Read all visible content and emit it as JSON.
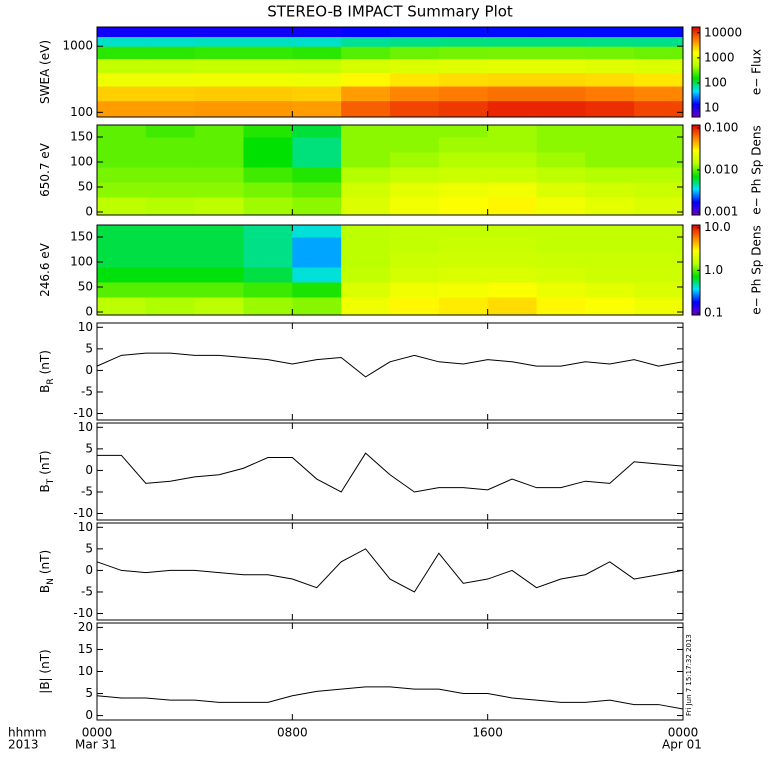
{
  "title": "STEREO-B IMPACT Summary Plot",
  "timestamp": "Fri Jun  7 15:17:32 2013",
  "colormap": [
    "#6a00c8",
    "#0000ff",
    "#00e0ff",
    "#00e000",
    "#b8ff00",
    "#ffff00",
    "#ff8000",
    "#e00000"
  ],
  "chart_data": [
    {
      "type": "heatmap",
      "ylabel": "SWEA (eV)",
      "ylog": true,
      "ylim": [
        85,
        1950
      ],
      "yticks": [
        100,
        1000
      ],
      "xlim": [
        0,
        24
      ],
      "xticks": [
        0,
        8,
        16,
        24
      ],
      "x_edges": [
        0,
        2,
        4,
        6,
        8,
        10,
        12,
        14,
        16,
        18,
        20,
        22,
        24
      ],
      "y_edges": [
        85,
        150,
        250,
        400,
        650,
        1000,
        1400,
        1950
      ],
      "values": [
        [
          4000,
          4000,
          4200,
          4200,
          4000,
          7000,
          9000,
          10000,
          12000,
          12000,
          11000,
          9000
        ],
        [
          2500,
          2500,
          2600,
          2600,
          2500,
          4000,
          5000,
          5500,
          6000,
          6000,
          5500,
          5000
        ],
        [
          1200,
          1200,
          1250,
          1250,
          1200,
          1700,
          2000,
          2200,
          2300,
          2300,
          2200,
          2000
        ],
        [
          600,
          600,
          620,
          620,
          600,
          800,
          900,
          950,
          1000,
          1000,
          950,
          900
        ],
        [
          200,
          200,
          210,
          210,
          200,
          260,
          300,
          320,
          330,
          330,
          320,
          300
        ],
        [
          60,
          60,
          62,
          62,
          60,
          75,
          80,
          85,
          85,
          85,
          82,
          80
        ],
        [
          12,
          12,
          12,
          12,
          12,
          14,
          15,
          15,
          15,
          15,
          15,
          15
        ]
      ],
      "colorbar": {
        "label": "e− Flux",
        "log": true,
        "clim": [
          4.4,
          17000
        ],
        "ticks": [
          10,
          100,
          1000,
          10000
        ]
      }
    },
    {
      "type": "heatmap",
      "ylabel": "650.7 eV",
      "ylog": false,
      "ylim": [
        -6,
        174
      ],
      "yticks": [
        0,
        50,
        100,
        150
      ],
      "xlim": [
        0,
        24
      ],
      "xticks": [
        0,
        8,
        16,
        24
      ],
      "x_edges": [
        0,
        2,
        4,
        6,
        8,
        10,
        12,
        14,
        16,
        18,
        20,
        22,
        24
      ],
      "y_edges": [
        -6,
        30,
        60,
        90,
        120,
        150,
        174
      ],
      "values": [
        [
          0.015,
          0.014,
          0.015,
          0.013,
          0.012,
          0.02,
          0.025,
          0.028,
          0.03,
          0.025,
          0.022,
          0.02
        ],
        [
          0.012,
          0.012,
          0.012,
          0.011,
          0.01,
          0.018,
          0.022,
          0.024,
          0.025,
          0.02,
          0.018,
          0.017
        ],
        [
          0.011,
          0.011,
          0.011,
          0.009,
          0.008,
          0.014,
          0.016,
          0.017,
          0.017,
          0.015,
          0.014,
          0.014
        ],
        [
          0.01,
          0.01,
          0.01,
          0.007,
          0.005,
          0.012,
          0.013,
          0.014,
          0.014,
          0.013,
          0.012,
          0.012
        ],
        [
          0.01,
          0.01,
          0.01,
          0.007,
          0.005,
          0.012,
          0.012,
          0.013,
          0.013,
          0.012,
          0.012,
          0.012
        ],
        [
          0.01,
          0.009,
          0.01,
          0.008,
          0.006,
          0.012,
          0.012,
          0.012,
          0.013,
          0.012,
          0.012,
          0.012
        ]
      ],
      "colorbar": {
        "label": "e− Ph Sp Dens",
        "log": true,
        "clim": [
          0.00085,
          0.117
        ],
        "ticks": [
          0.001,
          {
            "value": 0.01,
            "label": "0.010"
          },
          {
            "value": 0.1,
            "label": "0.100"
          }
        ]
      }
    },
    {
      "type": "heatmap",
      "ylabel": "246.6 eV",
      "ylog": false,
      "ylim": [
        -6,
        174
      ],
      "yticks": [
        0,
        50,
        100,
        150
      ],
      "xlim": [
        0,
        24
      ],
      "xticks": [
        0,
        8,
        16,
        24
      ],
      "x_edges": [
        0,
        2,
        4,
        6,
        8,
        10,
        12,
        14,
        16,
        18,
        20,
        22,
        24
      ],
      "y_edges": [
        -6,
        30,
        60,
        90,
        120,
        150,
        174
      ],
      "values": [
        [
          1.5,
          1.4,
          1.5,
          1.3,
          1.2,
          2.5,
          3,
          3.2,
          3.5,
          3,
          2.8,
          2.5
        ],
        [
          1,
          1,
          1,
          0.9,
          0.8,
          2,
          2.5,
          2.6,
          2.8,
          2.4,
          2.2,
          2
        ],
        [
          0.7,
          0.7,
          0.7,
          0.6,
          0.4,
          1.6,
          1.9,
          2,
          2,
          1.9,
          1.8,
          1.8
        ],
        [
          0.6,
          0.6,
          0.6,
          0.5,
          0.3,
          1.5,
          1.7,
          1.8,
          1.8,
          1.7,
          1.7,
          1.7
        ],
        [
          0.6,
          0.6,
          0.6,
          0.5,
          0.3,
          1.5,
          1.6,
          1.7,
          1.7,
          1.6,
          1.6,
          1.6
        ],
        [
          0.6,
          0.6,
          0.6,
          0.5,
          0.4,
          1.5,
          1.6,
          1.6,
          1.6,
          1.6,
          1.6,
          1.6
        ]
      ],
      "colorbar": {
        "label": "e− Ph Sp Dens",
        "log": true,
        "clim": [
          0.09,
          11.6
        ],
        "ticks": [
          0.1,
          {
            "value": 1,
            "label": "1.0"
          },
          {
            "value": 10,
            "label": "10.0"
          }
        ]
      }
    },
    {
      "type": "line",
      "ylabel": "B",
      "ylabel_sub": "R",
      "ylabel_unit": "(nT)",
      "ylim": [
        -11.5,
        11
      ],
      "yticks": [
        -10,
        -5,
        0,
        5,
        10
      ],
      "xlim": [
        0,
        24
      ],
      "xticks": [
        0,
        8,
        16,
        24
      ],
      "x": [
        0,
        1,
        2,
        3,
        4,
        5,
        6,
        7,
        8,
        9,
        10,
        11,
        12,
        13,
        14,
        15,
        16,
        17,
        18,
        19,
        20,
        21,
        22,
        23,
        24
      ],
      "values": [
        1,
        3.5,
        4,
        4,
        3.5,
        3.5,
        3,
        2.5,
        1.5,
        2.5,
        3,
        -1.5,
        2,
        3.5,
        2,
        1.5,
        2.5,
        2,
        1,
        1,
        2,
        1.5,
        2.5,
        1,
        2
      ]
    },
    {
      "type": "line",
      "ylabel": "B",
      "ylabel_sub": "T",
      "ylabel_unit": "(nT)",
      "ylim": [
        -11.5,
        11
      ],
      "yticks": [
        -10,
        -5,
        0,
        5,
        10
      ],
      "xlim": [
        0,
        24
      ],
      "xticks": [
        0,
        8,
        16,
        24
      ],
      "x": [
        0,
        1,
        2,
        3,
        4,
        5,
        6,
        7,
        8,
        9,
        10,
        11,
        12,
        13,
        14,
        15,
        16,
        17,
        18,
        19,
        20,
        21,
        22,
        23,
        24
      ],
      "values": [
        3.5,
        3.5,
        -3,
        -2.5,
        -1.5,
        -1,
        0.5,
        3,
        3,
        -2,
        -5,
        4,
        -1,
        -5,
        -4,
        -4,
        -4.5,
        -2,
        -4,
        -4,
        -2.5,
        -3,
        2,
        1.5,
        1
      ]
    },
    {
      "type": "line",
      "ylabel": "B",
      "ylabel_sub": "N",
      "ylabel_unit": "(nT)",
      "ylim": [
        -11.5,
        11
      ],
      "yticks": [
        -10,
        -5,
        0,
        5,
        10
      ],
      "xlim": [
        0,
        24
      ],
      "xticks": [
        0,
        8,
        16,
        24
      ],
      "x": [
        0,
        1,
        2,
        3,
        4,
        5,
        6,
        7,
        8,
        9,
        10,
        11,
        12,
        13,
        14,
        15,
        16,
        17,
        18,
        19,
        20,
        21,
        22,
        23,
        24
      ],
      "values": [
        2,
        0,
        -0.5,
        0,
        0,
        -0.5,
        -1,
        -1,
        -2,
        -4,
        2,
        5,
        -2,
        -5,
        4,
        -3,
        -2,
        0,
        -4,
        -2,
        -1,
        2,
        -2,
        -1,
        0
      ]
    },
    {
      "type": "line",
      "ylabel": "|B| (nT)",
      "ylim": [
        -1,
        21
      ],
      "yticks": [
        0,
        5,
        10,
        15,
        20
      ],
      "xlim": [
        0,
        24
      ],
      "xticks": [
        {
          "value": 0,
          "label": "0000"
        },
        {
          "value": 8,
          "label": "0800"
        },
        {
          "value": 16,
          "label": "1600"
        },
        {
          "value": 24,
          "label": "0000"
        }
      ],
      "axis_caption": [
        "hhmm",
        "2013"
      ],
      "dates": [
        "Mar 31",
        "Apr 01"
      ],
      "x": [
        0,
        1,
        2,
        3,
        4,
        5,
        6,
        7,
        8,
        9,
        10,
        11,
        12,
        13,
        14,
        15,
        16,
        17,
        18,
        19,
        20,
        21,
        22,
        23,
        24
      ],
      "values": [
        4.5,
        4,
        4,
        3.5,
        3.5,
        3,
        3,
        3,
        4.5,
        5.5,
        6,
        6.5,
        6.5,
        6,
        6,
        5,
        5,
        4,
        3.5,
        3,
        3,
        3.5,
        2.5,
        2.5,
        1.5
      ]
    }
  ]
}
